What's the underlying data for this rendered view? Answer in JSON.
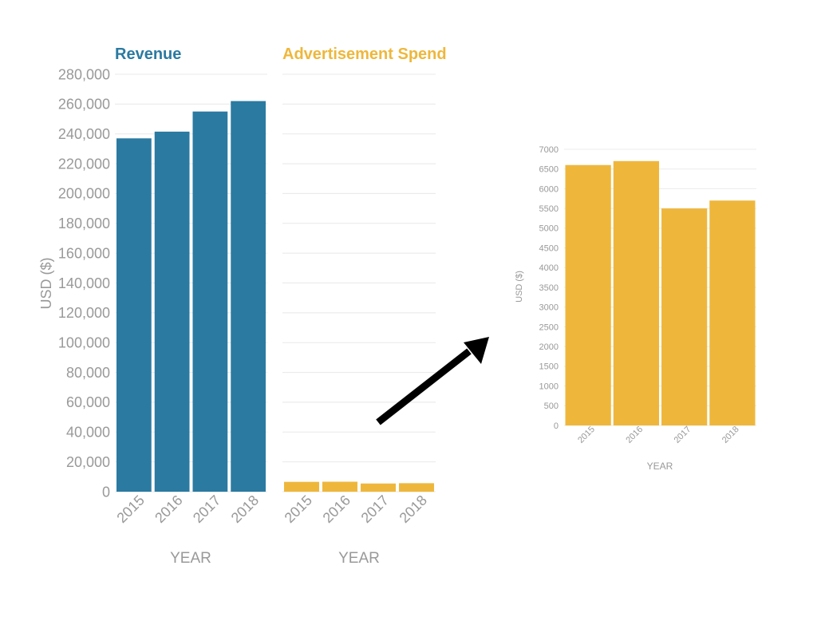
{
  "colors": {
    "revenue": "#2b7aa1",
    "ad_spend": "#eeb73c",
    "grid": "#e8e8e8",
    "axis_text": "#999999",
    "arrow": "#000000"
  },
  "chart_data": [
    {
      "type": "bar",
      "title": "Revenue",
      "categories": [
        "2015",
        "2016",
        "2017",
        "2018"
      ],
      "series": [
        {
          "values": [
            237000,
            241500,
            255000,
            262000
          ]
        }
      ],
      "xlabel": "YEAR",
      "ylabel": "USD ($)",
      "ylim": [
        0,
        280000
      ],
      "yticks": [
        0,
        20000,
        40000,
        60000,
        80000,
        100000,
        120000,
        140000,
        160000,
        180000,
        200000,
        220000,
        240000,
        260000,
        280000
      ],
      "ytick_labels": [
        "0",
        "20,000",
        "40,000",
        "60,000",
        "80,000",
        "100,000",
        "120,000",
        "140,000",
        "160,000",
        "180,000",
        "200,000",
        "220,000",
        "240,000",
        "260,000",
        "280,000"
      ],
      "grid": true,
      "color": "#2b7aa1"
    },
    {
      "type": "bar",
      "title": "Advertisement Spend",
      "categories": [
        "2015",
        "2016",
        "2017",
        "2018"
      ],
      "series": [
        {
          "values": [
            6600,
            6700,
            5500,
            5700
          ]
        }
      ],
      "xlabel": "YEAR",
      "ylim": [
        0,
        280000
      ],
      "grid": true,
      "color": "#eeb73c"
    },
    {
      "type": "bar",
      "title": "",
      "categories": [
        "2015",
        "2016",
        "2017",
        "2018"
      ],
      "series": [
        {
          "values": [
            6600,
            6700,
            5500,
            5700
          ]
        }
      ],
      "xlabel": "YEAR",
      "ylabel": "USD ($)",
      "ylim": [
        0,
        7000
      ],
      "yticks": [
        0,
        500,
        1000,
        1500,
        2000,
        2500,
        3000,
        3500,
        4000,
        4500,
        5000,
        5500,
        6000,
        6500,
        7000
      ],
      "ytick_labels": [
        "0",
        "500",
        "1000",
        "1500",
        "2000",
        "2500",
        "3000",
        "3500",
        "4000",
        "4500",
        "5000",
        "5500",
        "6000",
        "6500",
        "7000"
      ],
      "grid": true,
      "color": "#eeb73c"
    }
  ]
}
